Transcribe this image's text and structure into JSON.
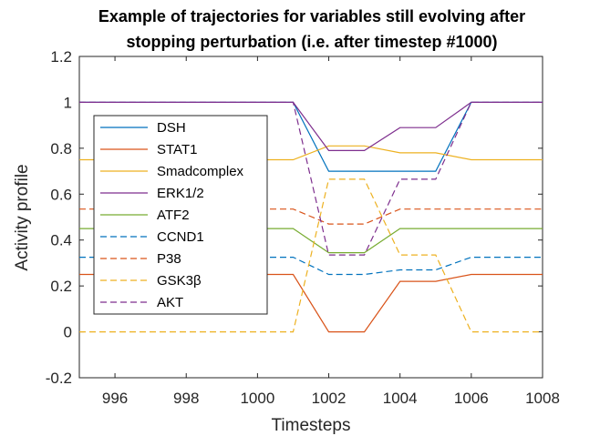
{
  "chart_data": {
    "type": "line",
    "title": [
      "Example of trajectories for variables still evolving after",
      "stopping perturbation (i.e. after timestep #1000)"
    ],
    "xlabel": "Timesteps",
    "ylabel": "Activity profile",
    "xlim": [
      995,
      1008
    ],
    "ylim": [
      -0.2,
      1.2
    ],
    "xticks": [
      996,
      998,
      1000,
      1002,
      1004,
      1006,
      1008
    ],
    "yticks": [
      -0.2,
      0,
      0.2,
      0.4,
      0.6,
      0.8,
      1,
      1.2
    ],
    "ytick_labels": [
      "-0.2",
      "0",
      "0.2",
      "0.4",
      "0.6",
      "0.8",
      "1",
      "1.2"
    ],
    "grid": false,
    "legend_position": "left",
    "x": [
      995,
      1001,
      1002,
      1003,
      1004,
      1005,
      1006,
      1008
    ],
    "series": [
      {
        "name": "DSH",
        "color": "#0072BD",
        "dash": "solid",
        "values": [
          1,
          1,
          0.7,
          0.7,
          0.7,
          0.7,
          1,
          1
        ]
      },
      {
        "name": "STAT1",
        "color": "#D95319",
        "dash": "solid",
        "values": [
          0.25,
          0.25,
          0,
          0,
          0.22,
          0.22,
          0.25,
          0.25
        ]
      },
      {
        "name": "Smadcomplex",
        "color": "#EDB120",
        "dash": "solid",
        "values": [
          0.75,
          0.75,
          0.81,
          0.81,
          0.78,
          0.78,
          0.75,
          0.75
        ]
      },
      {
        "name": "ERK1/2",
        "color": "#7E2F8E",
        "dash": "solid",
        "values": [
          1,
          1,
          0.79,
          0.79,
          0.89,
          0.89,
          1,
          1
        ]
      },
      {
        "name": "ATF2",
        "color": "#77AC30",
        "dash": "solid",
        "values": [
          0.45,
          0.45,
          0.345,
          0.345,
          0.45,
          0.45,
          0.45,
          0.45
        ]
      },
      {
        "name": "CCND1",
        "color": "#0072BD",
        "dash": "dashed",
        "values": [
          0.325,
          0.325,
          0.25,
          0.25,
          0.27,
          0.27,
          0.325,
          0.325
        ]
      },
      {
        "name": "P38",
        "color": "#D95319",
        "dash": "dashed",
        "values": [
          0.535,
          0.535,
          0.47,
          0.47,
          0.535,
          0.535,
          0.535,
          0.535
        ]
      },
      {
        "name": "GSK3β",
        "color": "#EDB120",
        "dash": "dashed",
        "values": [
          0,
          0,
          0.665,
          0.665,
          0.335,
          0.335,
          0,
          0
        ]
      },
      {
        "name": "AKT",
        "color": "#7E2F8E",
        "dash": "dashed",
        "values": [
          1,
          1,
          0.335,
          0.335,
          0.665,
          0.665,
          1,
          1
        ]
      }
    ]
  }
}
